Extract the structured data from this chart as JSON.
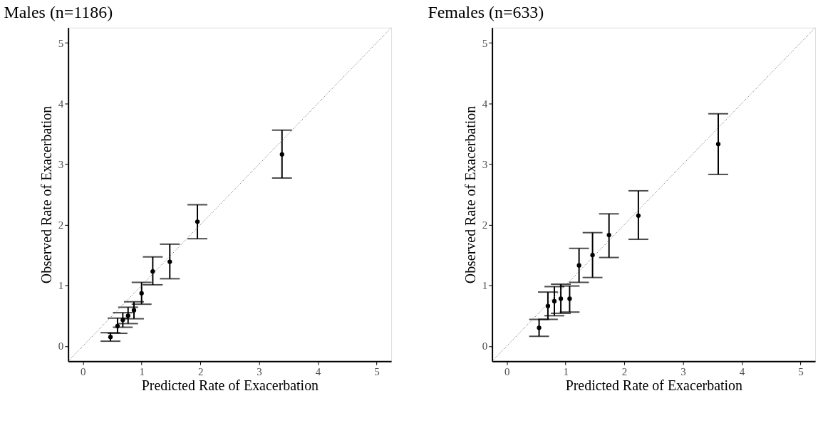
{
  "chart_data": [
    {
      "type": "scatter",
      "title": "Males (n=1186)",
      "xlabel": "Predicted Rate of Exacerbation",
      "ylabel": "Observed Rate of Exacerbation",
      "xlim": [
        -0.25,
        5.25
      ],
      "ylim": [
        -0.25,
        5.25
      ],
      "xticks": [
        0,
        1,
        2,
        3,
        4,
        5
      ],
      "yticks": [
        0,
        1,
        2,
        3,
        4,
        5
      ],
      "grid": false,
      "legend": false,
      "marker": "circle",
      "series": [
        {
          "type": "scatter",
          "color": "#000000",
          "x": [
            0.47,
            0.59,
            0.68,
            0.77,
            0.87,
            1.0,
            1.19,
            1.48,
            1.95,
            3.39
          ],
          "values": [
            0.15,
            0.33,
            0.43,
            0.5,
            0.59,
            0.87,
            1.23,
            1.39,
            2.05,
            3.16
          ],
          "errors": [
            [
              0.08,
              0.22
            ],
            [
              0.21,
              0.46
            ],
            [
              0.31,
              0.55
            ],
            [
              0.37,
              0.64
            ],
            [
              0.45,
              0.73
            ],
            [
              0.69,
              1.05
            ],
            [
              1.01,
              1.47
            ],
            [
              1.11,
              1.68
            ],
            [
              1.77,
              2.33
            ],
            [
              2.77,
              3.56
            ]
          ]
        },
        {
          "type": "line",
          "color": "#555555",
          "line_style": "dotted",
          "marker": "none",
          "x": [
            -0.25,
            5.25
          ],
          "values": [
            -0.25,
            5.25
          ]
        }
      ]
    },
    {
      "type": "scatter",
      "title": "Females (n=633)",
      "xlabel": "Predicted Rate of Exacerbation",
      "ylabel": "Observed Rate of Exacerbation",
      "xlim": [
        -0.25,
        5.25
      ],
      "ylim": [
        -0.25,
        5.25
      ],
      "xticks": [
        0,
        1,
        2,
        3,
        4,
        5
      ],
      "yticks": [
        0,
        1,
        2,
        3,
        4,
        5
      ],
      "grid": false,
      "legend": false,
      "marker": "circle",
      "series": [
        {
          "type": "scatter",
          "color": "#000000",
          "x": [
            0.55,
            0.7,
            0.81,
            0.92,
            1.07,
            1.23,
            1.46,
            1.74,
            2.24,
            3.6
          ],
          "values": [
            0.3,
            0.66,
            0.74,
            0.78,
            0.78,
            1.33,
            1.5,
            1.83,
            2.15,
            3.33
          ],
          "errors": [
            [
              0.16,
              0.44
            ],
            [
              0.44,
              0.89
            ],
            [
              0.5,
              0.98
            ],
            [
              0.54,
              1.02
            ],
            [
              0.56,
              0.99
            ],
            [
              1.05,
              1.61
            ],
            [
              1.13,
              1.87
            ],
            [
              1.46,
              2.18
            ],
            [
              1.76,
              2.56
            ],
            [
              2.83,
              3.83
            ]
          ]
        },
        {
          "type": "line",
          "color": "#555555",
          "line_style": "dotted",
          "marker": "none",
          "x": [
            -0.25,
            5.25
          ],
          "values": [
            -0.25,
            5.25
          ]
        }
      ]
    }
  ]
}
